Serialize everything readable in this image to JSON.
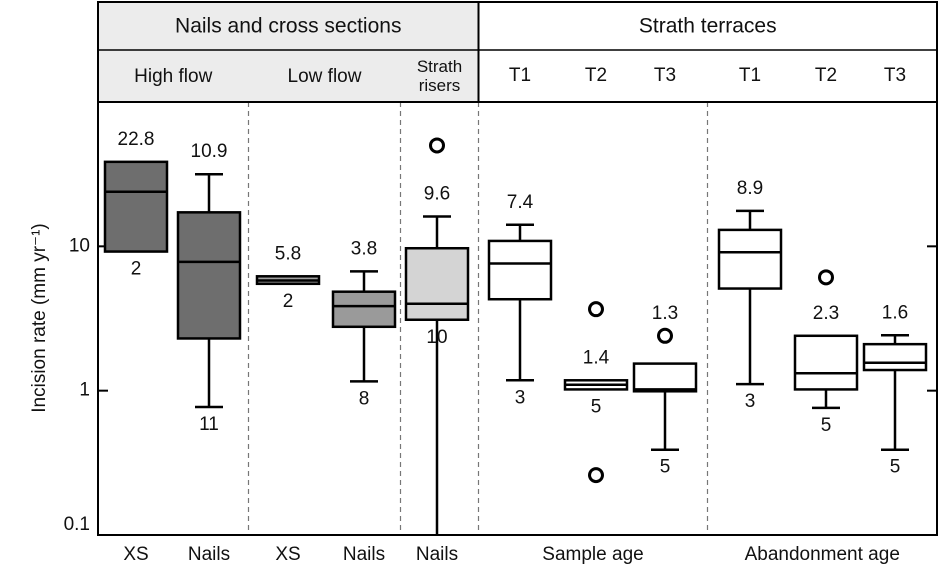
{
  "chart_data": {
    "type": "box",
    "y_label": "Incision rate (mm yr⁻¹)",
    "ylog": true,
    "ylim": [
      0.1,
      100
    ],
    "yticks": [
      0.1,
      1,
      10
    ],
    "groups": [
      {
        "label": "Nails and cross sections",
        "color": "#ececec",
        "subgroups": [
          {
            "label": "High flow",
            "boxes": [
              {
                "label": "XS",
                "color": "#6e6e6e",
                "q1": 9.2,
                "median": 23.9,
                "q3": 38.5,
                "outliers": [],
                "mean": 22.8,
                "n": 2
              },
              {
                "label": "Nails",
                "color": "#6e6e6e",
                "whisker_low": 0.77,
                "q1": 2.3,
                "median": 7.8,
                "q3": 17.2,
                "whisker_high": 31.6,
                "outliers": [],
                "mean": 10.9,
                "n": 11
              }
            ]
          },
          {
            "label": "Low flow",
            "boxes": [
              {
                "label": "XS",
                "color": "#a0a0a0",
                "q1": 5.5,
                "median": 5.8,
                "q3": 6.2,
                "outliers": [],
                "mean": 5.8,
                "n": 2
              },
              {
                "label": "Nails",
                "color": "#9a9a9a",
                "whisker_low": 1.16,
                "q1": 2.77,
                "median": 3.85,
                "q3": 4.85,
                "whisker_high": 6.7,
                "outliers": [],
                "mean": 3.8,
                "n": 8
              }
            ]
          },
          {
            "label": "Strath risers",
            "boxes": [
              {
                "label": "Nails",
                "color": "#d4d4d4",
                "whisker_low": 0.1,
                "q1": 3.1,
                "median": 4.0,
                "q3": 9.7,
                "whisker_high": 16.1,
                "outliers": [
                  50
                ],
                "mean": 9.6,
                "n": 10
              }
            ]
          }
        ]
      },
      {
        "label": "Strath terraces",
        "color": "#ffffff",
        "subgroups": [
          {
            "label": "Sample age",
            "boxes": [
              {
                "label": "T1",
                "color": "#ffffff",
                "whisker_low": 1.18,
                "q1": 4.3,
                "median": 7.6,
                "q3": 10.9,
                "whisker_high": 14.1,
                "outliers": [],
                "mean": 7.4,
                "n": 3
              },
              {
                "label": "T2",
                "color": "#ffffff",
                "q1": 1.02,
                "median": 1.1,
                "q3": 1.18,
                "outliers": [
                  3.67,
                  0.26
                ],
                "mean": 1.4,
                "n": 5
              },
              {
                "label": "T3",
                "color": "#ffffff",
                "whisker_low": 0.39,
                "q1": 0.99,
                "median": 1.02,
                "q3": 1.54,
                "outliers": [
                  2.4
                ],
                "mean": 1.3,
                "n": 5
              }
            ]
          },
          {
            "label": "Abandonment age",
            "boxes": [
              {
                "label": "T1",
                "color": "#ffffff",
                "whisker_low": 1.11,
                "q1": 5.1,
                "median": 9.1,
                "q3": 13.0,
                "whisker_high": 17.6,
                "outliers": [],
                "mean": 8.9,
                "n": 3
              },
              {
                "label": "T2",
                "color": "#ffffff",
                "whisker_low": 0.76,
                "q1": 1.02,
                "median": 1.32,
                "q3": 2.4,
                "outliers": [
                  6.1
                ],
                "mean": 2.3,
                "n": 5
              },
              {
                "label": "T3",
                "color": "#ffffff",
                "whisker_low": 0.39,
                "q1": 1.39,
                "median": 1.56,
                "q3": 2.1,
                "whisker_high": 2.42,
                "outliers": [],
                "mean": 1.6,
                "n": 5
              }
            ]
          }
        ]
      }
    ]
  }
}
